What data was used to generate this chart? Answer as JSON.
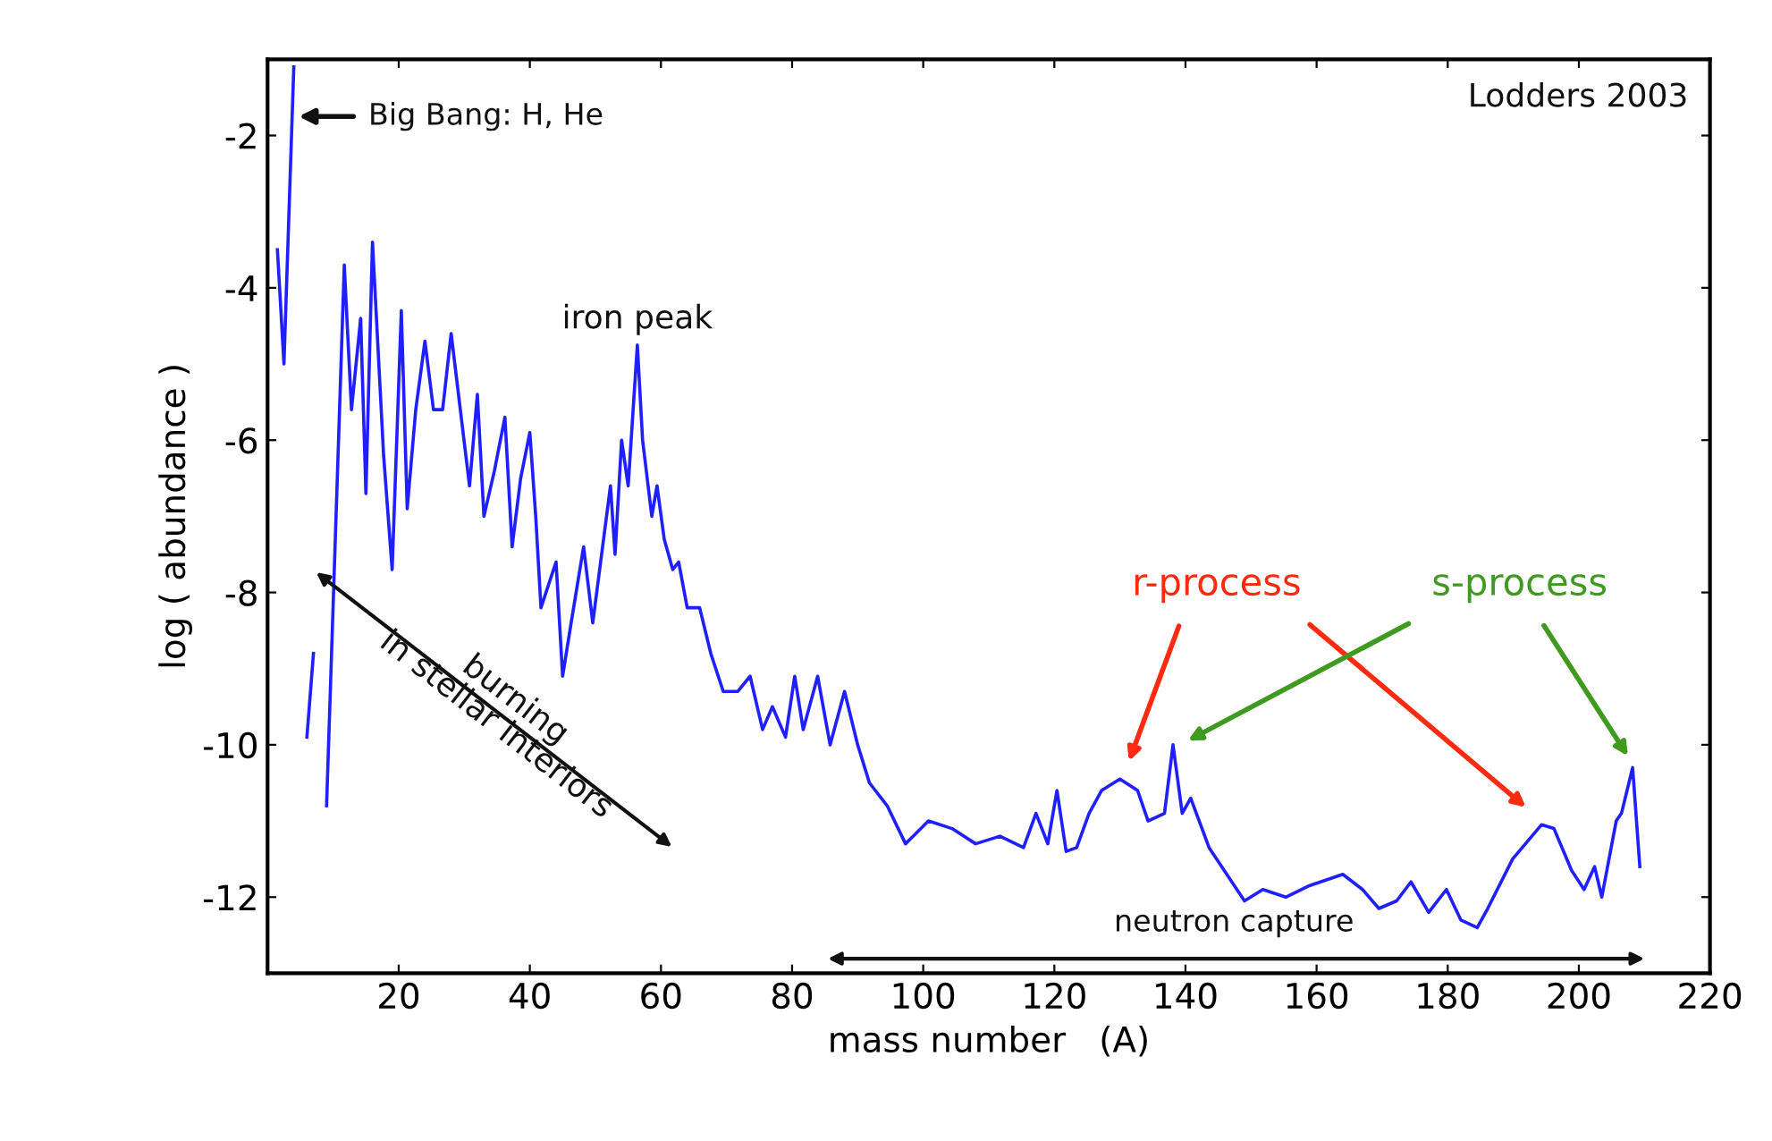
{
  "chart_data": {
    "type": "line",
    "xlabel": "mass number   (A)",
    "ylabel": "log ( abundance )",
    "x": [
      1.5,
      2.5,
      4.0,
      5.0,
      6.0,
      7.0,
      8.0,
      9.0,
      11.7,
      12.8,
      14.2,
      15,
      16,
      17.7,
      19,
      20.4,
      21.3,
      22.6,
      24,
      25.3,
      26.7,
      28,
      30.8,
      32,
      33,
      34.6,
      36.2,
      37.3,
      38.6,
      40,
      40.9,
      41.7,
      44,
      45,
      46.3,
      48.2,
      49.6,
      52.3,
      53,
      54,
      55,
      56.4,
      57.2,
      58.6,
      59.4,
      60.5,
      61.8,
      62.7,
      64,
      65.9,
      67.6,
      69.5,
      71.7,
      73.6,
      75.5,
      77,
      79,
      80.4,
      81.7,
      83.9,
      85.8,
      88,
      90,
      91.8,
      94.5,
      97.3,
      100.8,
      104.4,
      108,
      111.7,
      115.3,
      117.2,
      119,
      120.4,
      121.8,
      123.4,
      125.3,
      127.2,
      130,
      132.7,
      134.3,
      136.8,
      138.1,
      139.5,
      140.8,
      143.6,
      146.3,
      149,
      151.8,
      155.3,
      158.9,
      164,
      167,
      169.5,
      172.2,
      174.4,
      177.1,
      179.8,
      182,
      184.5,
      186.1,
      189.9,
      194.3,
      196.2,
      198.9,
      200.8,
      202.4,
      203.5,
      205.7,
      206.5,
      208.2,
      209.3
    ],
    "series": [
      {
        "color": "#1f1fff",
        "values": [
          -3.5,
          -5.0,
          -1.1,
          null,
          -9.9,
          -8.8,
          null,
          -10.8,
          -3.7,
          -5.6,
          -4.4,
          -6.7,
          -3.4,
          -6.2,
          -7.7,
          -4.3,
          -6.9,
          -5.6,
          -4.7,
          -5.6,
          -5.6,
          -4.6,
          -6.6,
          -5.4,
          -7.0,
          -6.4,
          -5.7,
          -7.4,
          -6.5,
          -5.9,
          -7.0,
          -8.2,
          -7.6,
          -9.1,
          -8.4,
          -7.4,
          -8.4,
          -6.6,
          -7.5,
          -6.0,
          -6.6,
          -4.75,
          -6.0,
          -7.0,
          -6.6,
          -7.3,
          -7.7,
          -7.6,
          -8.2,
          -8.2,
          -8.8,
          -9.3,
          -9.3,
          -9.1,
          -9.8,
          -9.5,
          -9.9,
          -9.1,
          -9.8,
          -9.1,
          -10.0,
          -9.3,
          -10.0,
          -10.5,
          -10.8,
          -11.3,
          -11.0,
          -11.1,
          -11.3,
          -11.2,
          -11.35,
          -10.9,
          -11.3,
          -10.6,
          -11.4,
          -11.35,
          -10.9,
          -10.6,
          -10.45,
          -10.6,
          -11.0,
          -10.9,
          -10.0,
          -10.9,
          -10.7,
          -11.35,
          -11.7,
          -12.05,
          -11.9,
          -12.0,
          -11.85,
          -11.7,
          -11.9,
          -12.15,
          -12.05,
          -11.8,
          -12.2,
          -11.9,
          -12.3,
          -12.4,
          -12.15,
          -11.5,
          -11.05,
          -11.1,
          -11.65,
          -11.9,
          -11.6,
          -12.0,
          -11.0,
          -10.9,
          -10.3,
          -11.6
        ]
      }
    ],
    "xlim": [
      0,
      220
    ],
    "xticks": [
      20,
      40,
      60,
      80,
      100,
      120,
      140,
      160,
      180,
      200,
      220
    ],
    "ylim": [
      -13,
      -1
    ],
    "yticks": [
      -2,
      -4,
      -6,
      -8,
      -10,
      -12
    ],
    "grid": false,
    "legend": false,
    "annotations": [
      "Lodders 2003",
      {
        "text": "Big Bang: H, He",
        "x": 4,
        "y": -1.75
      },
      {
        "text": "iron peak",
        "x": 56.4,
        "y": -4.75
      },
      "burning\nin stellar interiors",
      "r-process",
      "s-process",
      "neutron capture"
    ]
  }
}
